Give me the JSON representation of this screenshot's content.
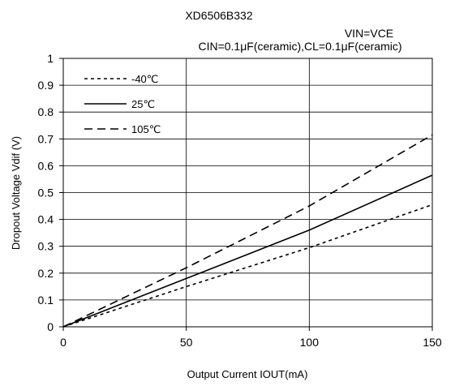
{
  "chart_data": {
    "type": "line",
    "title": "XD6506B332",
    "subtitle_condition": "VIN=VCE",
    "subtitle_caps": "CIN=0.1μF(ceramic),CL=0.1μF(ceramic)",
    "xlabel": "Output Current IOUT(mA)",
    "ylabel": "Dropout Voltage Vdif (V)",
    "xlim": [
      0,
      150
    ],
    "ylim": [
      0,
      1
    ],
    "x_ticks": [
      "0",
      "50",
      "100",
      "150"
    ],
    "y_ticks": [
      "0",
      "0.1",
      "0.2",
      "0.3",
      "0.4",
      "0.5",
      "0.6",
      "0.7",
      "0.8",
      "0.9",
      "1"
    ],
    "grid": true,
    "legend_position": "top-left",
    "series": [
      {
        "name": "-40℃",
        "style": "short-dash",
        "x": [
          0,
          50,
          100,
          150
        ],
        "y": [
          0,
          0.15,
          0.295,
          0.455
        ]
      },
      {
        "name": "25℃",
        "style": "solid",
        "x": [
          0,
          50,
          100,
          150
        ],
        "y": [
          0,
          0.18,
          0.36,
          0.565
        ]
      },
      {
        "name": "105℃",
        "style": "long-dash",
        "x": [
          0,
          50,
          100,
          150
        ],
        "y": [
          0,
          0.22,
          0.45,
          0.715
        ]
      }
    ]
  }
}
